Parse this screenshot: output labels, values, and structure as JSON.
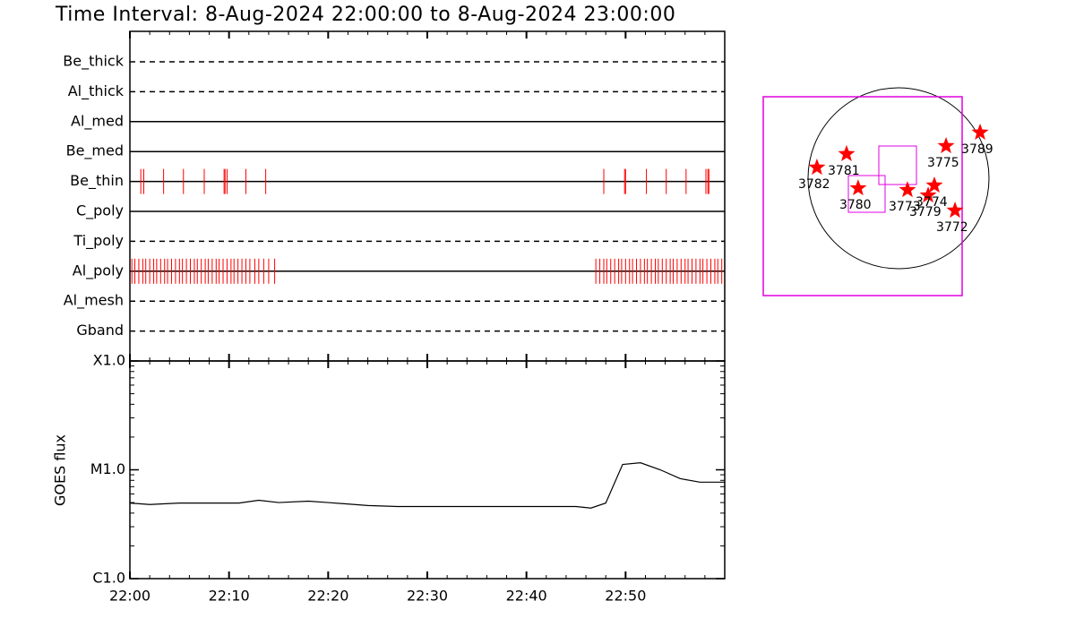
{
  "chart_data": [
    {
      "type": "timeline",
      "title": "Time Interval:  8-Aug-2024 22:00:00 to  8-Aug-2024 23:00:00",
      "xlim": [
        0,
        60
      ],
      "event_color": "#ff0000",
      "rows": [
        {
          "label": "Be_thick",
          "style": "dashed",
          "events": []
        },
        {
          "label": "Al_thick",
          "style": "dashed",
          "events": []
        },
        {
          "label": "Al_med",
          "style": "solid",
          "events": []
        },
        {
          "label": "Be_med",
          "style": "solid",
          "events": []
        },
        {
          "label": "Be_thin",
          "style": "solid",
          "events": [
            1.1,
            1.4,
            3.4,
            5.4,
            7.5,
            9.5,
            9.6,
            9.8,
            11.7,
            13.7,
            47.8,
            49.9,
            50.0,
            52.1,
            54.1,
            56.1,
            58.1,
            58.3,
            58.4
          ]
        },
        {
          "label": "C_poly",
          "style": "solid",
          "events": []
        },
        {
          "label": "Ti_poly",
          "style": "dashed",
          "events": []
        },
        {
          "label": "Al_poly",
          "style": "solid",
          "events": [
            0.2,
            0.5,
            0.9,
            1.3,
            1.6,
            2.0,
            2.4,
            2.7,
            3.1,
            3.5,
            3.8,
            4.2,
            4.6,
            5.0,
            5.3,
            5.7,
            6.1,
            6.5,
            6.8,
            7.2,
            7.6,
            7.9,
            8.3,
            8.7,
            9.0,
            9.4,
            9.8,
            10.2,
            10.5,
            10.9,
            11.3,
            11.7,
            12.1,
            12.6,
            13.0,
            13.5,
            14.0,
            14.6,
            47.0,
            47.4,
            47.8,
            48.1,
            48.5,
            48.9,
            49.3,
            49.6,
            50.0,
            50.4,
            50.7,
            51.1,
            51.5,
            51.9,
            52.2,
            52.6,
            53.0,
            53.3,
            53.7,
            54.1,
            54.5,
            54.8,
            55.2,
            55.6,
            56.0,
            56.3,
            56.7,
            57.1,
            57.5,
            57.8,
            58.2,
            58.6,
            59.0,
            59.3,
            59.7
          ]
        },
        {
          "label": "Al_mesh",
          "style": "dashed",
          "events": []
        },
        {
          "label": "Gband",
          "style": "dashed",
          "events": []
        }
      ]
    },
    {
      "type": "line",
      "y_label": "GOES flux",
      "log": true,
      "color": "#000000",
      "xlim": [
        0,
        60
      ],
      "xticks": [
        {
          "value": 0,
          "label": "22:00"
        },
        {
          "value": 10,
          "label": "22:10"
        },
        {
          "value": 20,
          "label": "22:20"
        },
        {
          "value": 30,
          "label": "22:30"
        },
        {
          "value": 40,
          "label": "22:40"
        },
        {
          "value": 50,
          "label": "22:50"
        }
      ],
      "ylim": [
        1e-06,
        0.0001
      ],
      "yticks": [
        {
          "value": 1e-06,
          "label": "C1.0"
        },
        {
          "value": 1e-05,
          "label": "M1.0"
        },
        {
          "value": 0.0001,
          "label": "X1.0"
        }
      ],
      "x": [
        0,
        2,
        5,
        11,
        13,
        15,
        18,
        20,
        24,
        27,
        37,
        45,
        46.5,
        48,
        49.7,
        51.5,
        53.5,
        55.5,
        57.5,
        60
      ],
      "values": [
        4.95e-06,
        4.8e-06,
        4.95e-06,
        4.95e-06,
        5.25e-06,
        5e-06,
        5.15e-06,
        5e-06,
        4.7e-06,
        4.6e-06,
        4.6e-06,
        4.6e-06,
        4.45e-06,
        4.95e-06,
        1.12e-05,
        1.16e-05,
        1e-05,
        8.3e-06,
        7.7e-06,
        7.7e-06
      ]
    },
    {
      "type": "scatter",
      "color": "#ff0000",
      "labels": [
        "3782",
        "3781",
        "3780",
        "3773",
        "3779",
        "3774",
        "3775",
        "3789",
        "3772"
      ],
      "x": [
        -865,
        -551,
        -428,
        95,
        314,
        380,
        504,
        865,
        599
      ],
      "values": [
        114,
        257,
        -105,
        -124,
        -181,
        -76,
        342,
        485,
        -342
      ]
    }
  ]
}
